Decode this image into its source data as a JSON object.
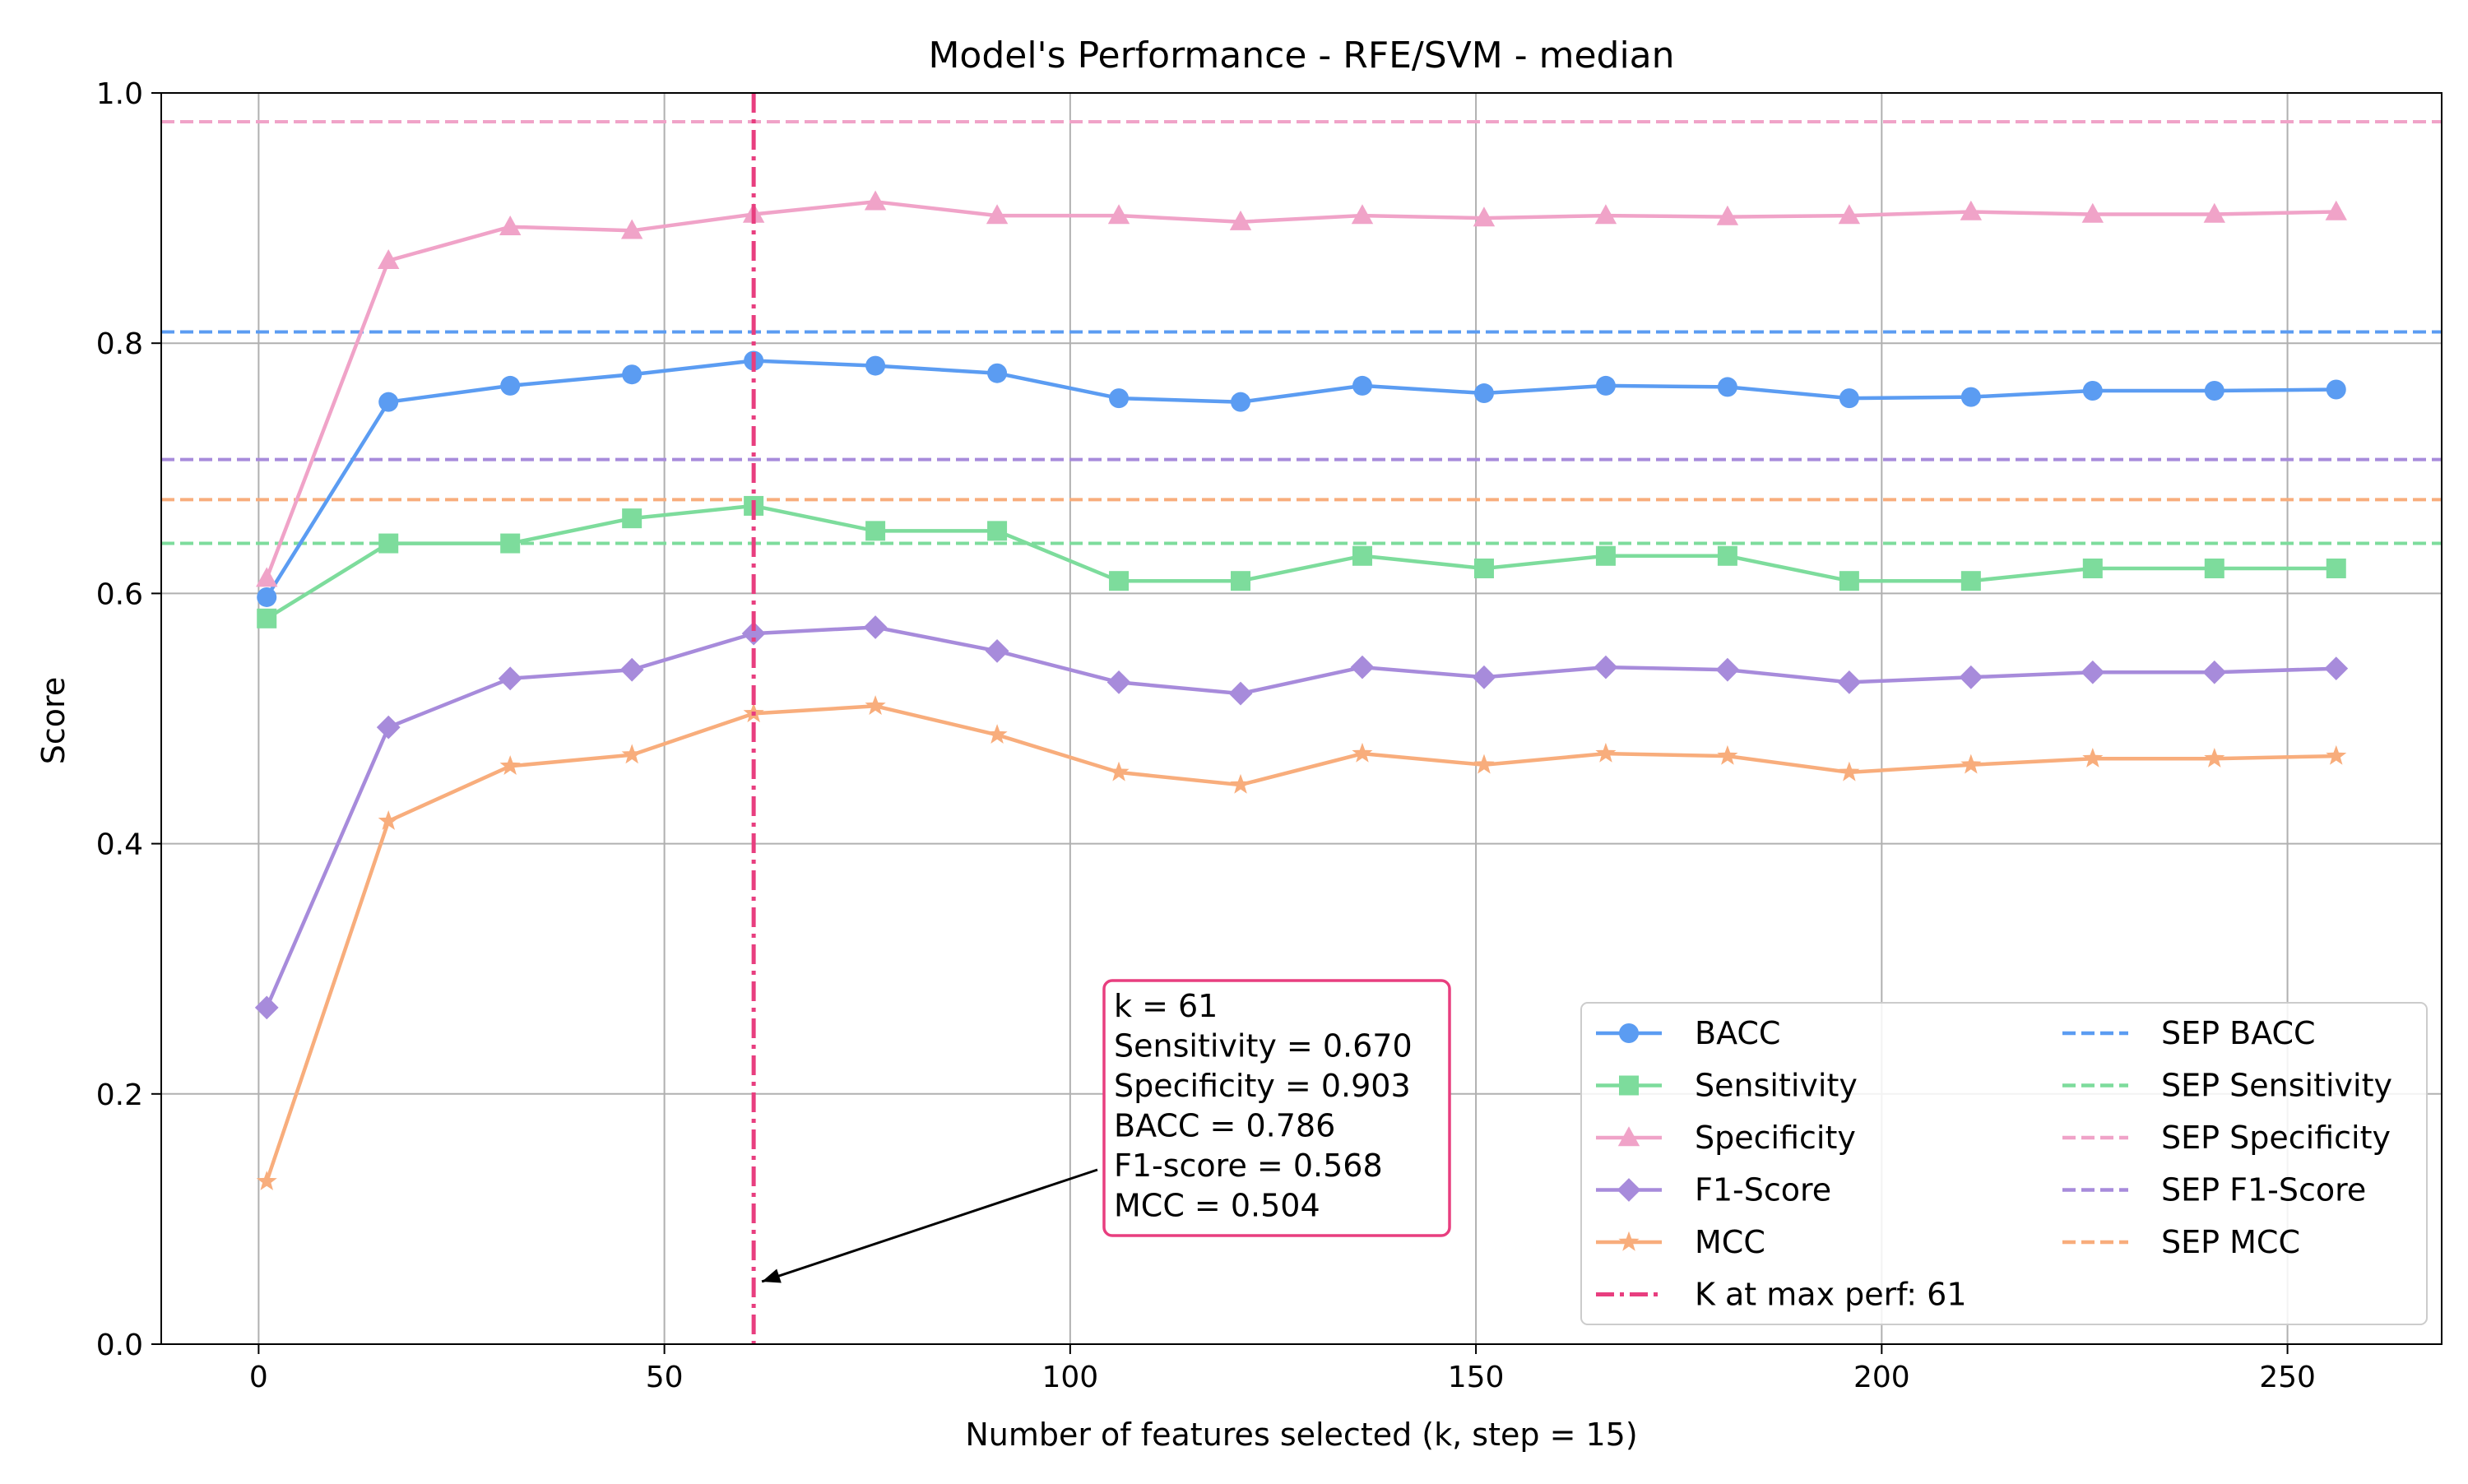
{
  "chart_data": {
    "type": "line",
    "title": "Model's Performance - RFE/SVM - median",
    "xlabel": "Number of features selected (k, step = 15)",
    "ylabel": "Score",
    "xlim": [
      -12,
      269
    ],
    "ylim": [
      0.0,
      1.0
    ],
    "x_ticks": [
      0,
      50,
      100,
      150,
      200,
      250
    ],
    "x_tick_labels": [
      "0",
      "50",
      "100",
      "150",
      "200",
      "250"
    ],
    "y_ticks": [
      0.0,
      0.2,
      0.4,
      0.6,
      0.8,
      1.0
    ],
    "y_tick_labels": [
      "0.0",
      "0.2",
      "0.4",
      "0.6",
      "0.8",
      "1.0"
    ],
    "grid": true,
    "legend_position": "lower-right",
    "x": [
      1,
      16,
      31,
      46,
      61,
      76,
      91,
      106,
      121,
      136,
      151,
      166,
      181,
      196,
      211,
      226,
      241,
      256
    ],
    "series": [
      {
        "name": "BACC",
        "color": "#5b9cf2",
        "marker": "circle",
        "values": [
          0.597,
          0.753,
          0.766,
          0.775,
          0.786,
          0.782,
          0.776,
          0.756,
          0.753,
          0.766,
          0.76,
          0.766,
          0.765,
          0.756,
          0.757,
          0.762,
          0.762,
          0.763
        ]
      },
      {
        "name": "Sensitivity",
        "color": "#7ddc9c",
        "marker": "square",
        "values": [
          0.58,
          0.64,
          0.64,
          0.66,
          0.67,
          0.65,
          0.65,
          0.61,
          0.61,
          0.63,
          0.62,
          0.63,
          0.63,
          0.61,
          0.61,
          0.62,
          0.62,
          0.62
        ]
      },
      {
        "name": "Specificity",
        "color": "#f0a3c8",
        "marker": "triangle",
        "values": [
          0.612,
          0.866,
          0.893,
          0.89,
          0.903,
          0.913,
          0.902,
          0.902,
          0.897,
          0.902,
          0.9,
          0.902,
          0.901,
          0.902,
          0.905,
          0.903,
          0.903,
          0.905
        ]
      },
      {
        "name": "F1-Score",
        "color": "#a78bdb",
        "marker": "diamond",
        "values": [
          0.269,
          0.493,
          0.532,
          0.539,
          0.568,
          0.573,
          0.554,
          0.529,
          0.52,
          0.541,
          0.533,
          0.541,
          0.539,
          0.529,
          0.533,
          0.537,
          0.537,
          0.54
        ]
      },
      {
        "name": "MCC",
        "color": "#f8ad7c",
        "marker": "star",
        "values": [
          0.13,
          0.418,
          0.462,
          0.471,
          0.504,
          0.51,
          0.487,
          0.457,
          0.447,
          0.472,
          0.463,
          0.472,
          0.47,
          0.457,
          0.463,
          0.468,
          0.468,
          0.47
        ]
      }
    ],
    "reference_lines": [
      {
        "name": "SEP BACC",
        "color": "#5b9cf2",
        "value": 0.809
      },
      {
        "name": "SEP Sensitivity",
        "color": "#7ddc9c",
        "value": 0.64
      },
      {
        "name": "SEP Specificity",
        "color": "#f0a3c8",
        "value": 0.977
      },
      {
        "name": "SEP F1-Score",
        "color": "#a78bdb",
        "value": 0.707
      },
      {
        "name": "SEP MCC",
        "color": "#f8ad7c",
        "value": 0.675
      }
    ],
    "vertical_line": {
      "name": "K at max perf: 61",
      "color": "#e83e7f",
      "value": 61
    },
    "annotation": {
      "lines": [
        "k = 61",
        "Sensitivity = 0.670",
        "Specificity = 0.903",
        "BACC = 0.786",
        "F1-score = 0.568",
        "MCC = 0.504"
      ],
      "border_color": "#e83e7f",
      "arrow_target": [
        61,
        0.05
      ]
    }
  }
}
